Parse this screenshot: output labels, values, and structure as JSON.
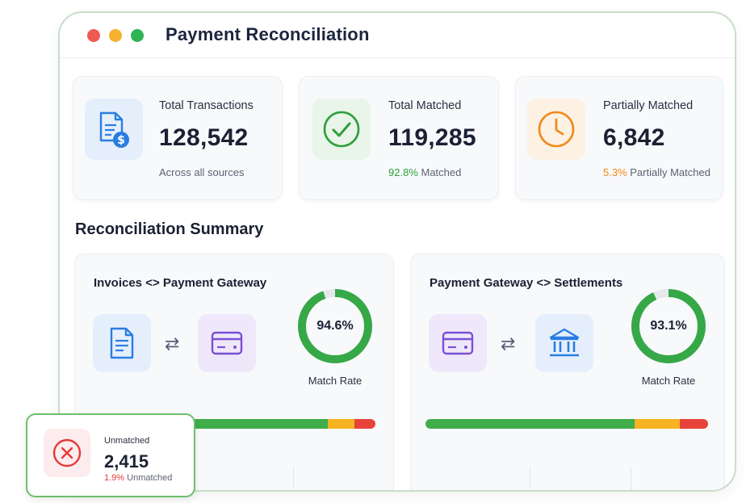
{
  "window": {
    "title": "Payment Reconciliation"
  },
  "colors": {
    "green": "#2e9e3c",
    "orange": "#f08a1a",
    "red": "#e5393a",
    "blue": "#2a7de1",
    "purple": "#7b4fd6"
  },
  "stats": [
    {
      "label": "Total Transactions",
      "value": "128,542",
      "sub": "Across all sources",
      "icon": "document-dollar-icon"
    },
    {
      "label": "Total Matched",
      "value": "119,285",
      "sub_pct": "92.8%",
      "sub_text": " Matched",
      "icon": "check-circle-icon"
    },
    {
      "label": "Partially Matched",
      "value": "6,842",
      "sub_pct": "5.3%",
      "sub_text": " Partially Matched",
      "icon": "clock-icon"
    }
  ],
  "section": {
    "title": "Reconciliation Summary"
  },
  "summaries": [
    {
      "title": "Invoices <> Payment Gateway",
      "from_icon": "invoice-icon",
      "to_icon": "credit-card-icon",
      "rate_label": "94.6%",
      "rate": 94.6,
      "caption": "Match Rate",
      "bar": {
        "matched": 79,
        "partial": 9,
        "unmatched": 7
      }
    },
    {
      "title": "Payment Gateway <> Settlements",
      "from_icon": "credit-card-icon",
      "to_icon": "bank-icon",
      "rate_label": "93.1%",
      "rate": 93.1,
      "caption": "Match Rate",
      "bar": {
        "matched": 74,
        "partial": 16,
        "unmatched": 10
      }
    }
  ],
  "unmatched": {
    "label": "Unmatched",
    "value": "2,415",
    "sub_pct": "1.9%",
    "sub_text": " Unmatched",
    "icon": "x-circle-icon"
  }
}
